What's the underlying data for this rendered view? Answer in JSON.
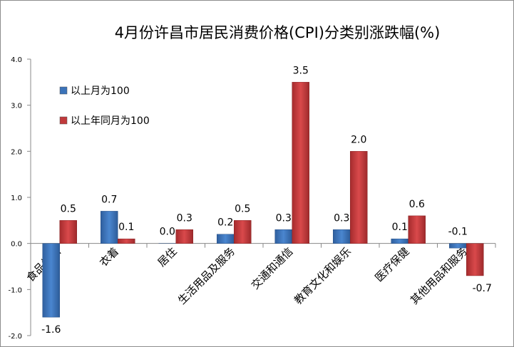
{
  "chart_data": {
    "type": "bar",
    "title": "4月份许昌市居民消费价格(CPI)分类别涨跌幅(%)",
    "categories": [
      "食品烟酒",
      "衣着",
      "居住",
      "生活用品及服务",
      "交通和通信",
      "教育文化和娱乐",
      "医疗保健",
      "其他用品和服务"
    ],
    "series": [
      {
        "name": "以上月为100",
        "color": "#3b73b9",
        "values": [
          -1.6,
          0.7,
          0.0,
          0.2,
          0.3,
          0.3,
          0.1,
          -0.1
        ]
      },
      {
        "name": "以上年同月为100",
        "color": "#c0393b",
        "values": [
          0.5,
          0.1,
          0.3,
          0.5,
          3.5,
          2.0,
          0.6,
          -0.7
        ]
      }
    ],
    "ylim": [
      -2.0,
      4.0
    ],
    "yticks": [
      "-2.0",
      "-1.0",
      "0.0",
      "1.0",
      "2.0",
      "3.0",
      "4.0"
    ],
    "grid": false,
    "legend": "top-left"
  }
}
